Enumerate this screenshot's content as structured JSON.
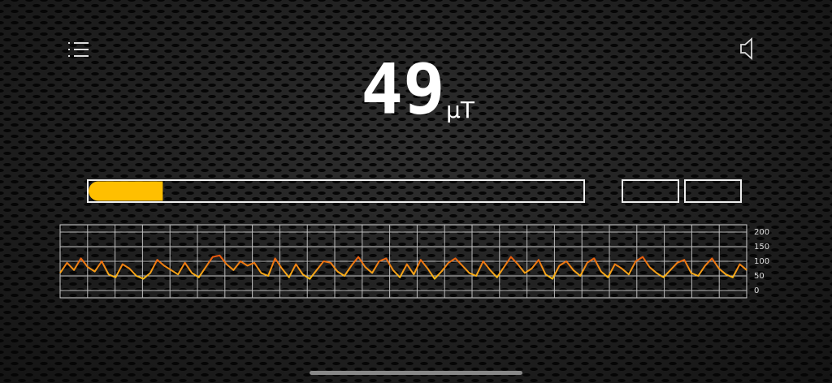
{
  "reading": {
    "value": 49,
    "unit": "µT"
  },
  "gauge": {
    "value": 15,
    "lim": [
      0,
      100
    ],
    "color": "#ffbf00"
  },
  "chart_data": {
    "type": "line",
    "values": [
      60,
      95,
      70,
      110,
      80,
      65,
      100,
      55,
      45,
      90,
      75,
      50,
      40,
      60,
      105,
      85,
      70,
      55,
      95,
      60,
      45,
      80,
      115,
      120,
      90,
      70,
      100,
      85,
      95,
      60,
      50,
      110,
      75,
      45,
      90,
      55,
      40,
      70,
      100,
      95,
      65,
      50,
      85,
      115,
      80,
      60,
      100,
      110,
      70,
      45,
      90,
      55,
      105,
      75,
      40,
      65,
      95,
      110,
      85,
      60,
      50,
      100,
      70,
      45,
      80,
      115,
      90,
      60,
      75,
      105,
      55,
      40,
      85,
      100,
      70,
      50,
      95,
      110,
      65,
      45,
      90,
      75,
      55,
      100,
      115,
      80,
      60,
      45,
      70,
      95,
      105,
      60,
      50,
      85,
      110,
      75,
      55,
      45,
      90,
      70
    ],
    "ylim": [
      -25,
      225
    ],
    "yticks": [
      0,
      50,
      100,
      150,
      200
    ],
    "grid": true,
    "color_high": "#e8500c",
    "color_low": "#ffc61a"
  }
}
